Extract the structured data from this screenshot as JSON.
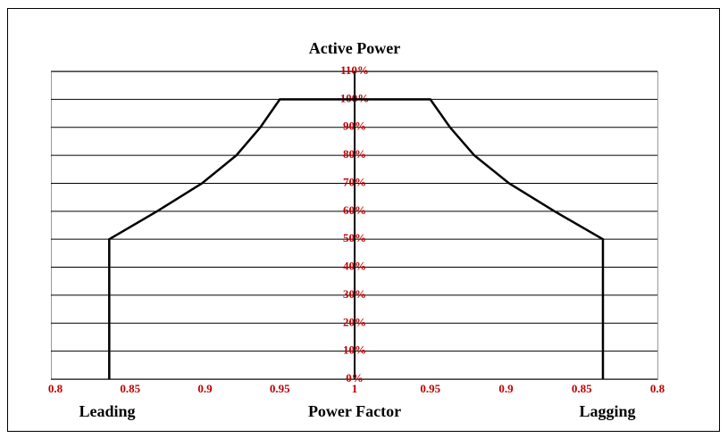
{
  "chart_data": {
    "type": "line",
    "title": "Active Power",
    "xlabel": "Power Factor",
    "xlim": [
      0.8,
      1
    ],
    "xticks": [
      0.8,
      0.85,
      0.9,
      0.95,
      1
    ],
    "ylim": [
      0,
      110
    ],
    "yticks": [
      {
        "value": 0,
        "label": "0%"
      },
      {
        "value": 10,
        "label": "10%"
      },
      {
        "value": 20,
        "label": "20%"
      },
      {
        "value": 30,
        "label": "30%"
      },
      {
        "value": 40,
        "label": "40%"
      },
      {
        "value": 50,
        "label": "50%"
      },
      {
        "value": 60,
        "label": "60%"
      },
      {
        "value": 70,
        "label": "70%"
      },
      {
        "value": 80,
        "label": "80%"
      },
      {
        "value": 90,
        "label": "90%"
      },
      {
        "value": 100,
        "label": "100%"
      },
      {
        "value": 110,
        "label": "110%"
      }
    ],
    "grid": true,
    "series": [
      {
        "name": "Leading",
        "side": "left",
        "color": "#000000",
        "x": [
          0.836,
          0.836,
          0.868,
          0.898,
          0.921,
          0.937,
          0.95,
          1
        ],
        "values": [
          0,
          50,
          60,
          70,
          80,
          90,
          100,
          100
        ]
      },
      {
        "name": "Lagging",
        "side": "right",
        "color": "#000000",
        "x": [
          0.836,
          0.836,
          0.868,
          0.898,
          0.921,
          0.937,
          0.95,
          1
        ],
        "values": [
          0,
          50,
          60,
          70,
          80,
          90,
          100,
          100
        ]
      }
    ]
  }
}
